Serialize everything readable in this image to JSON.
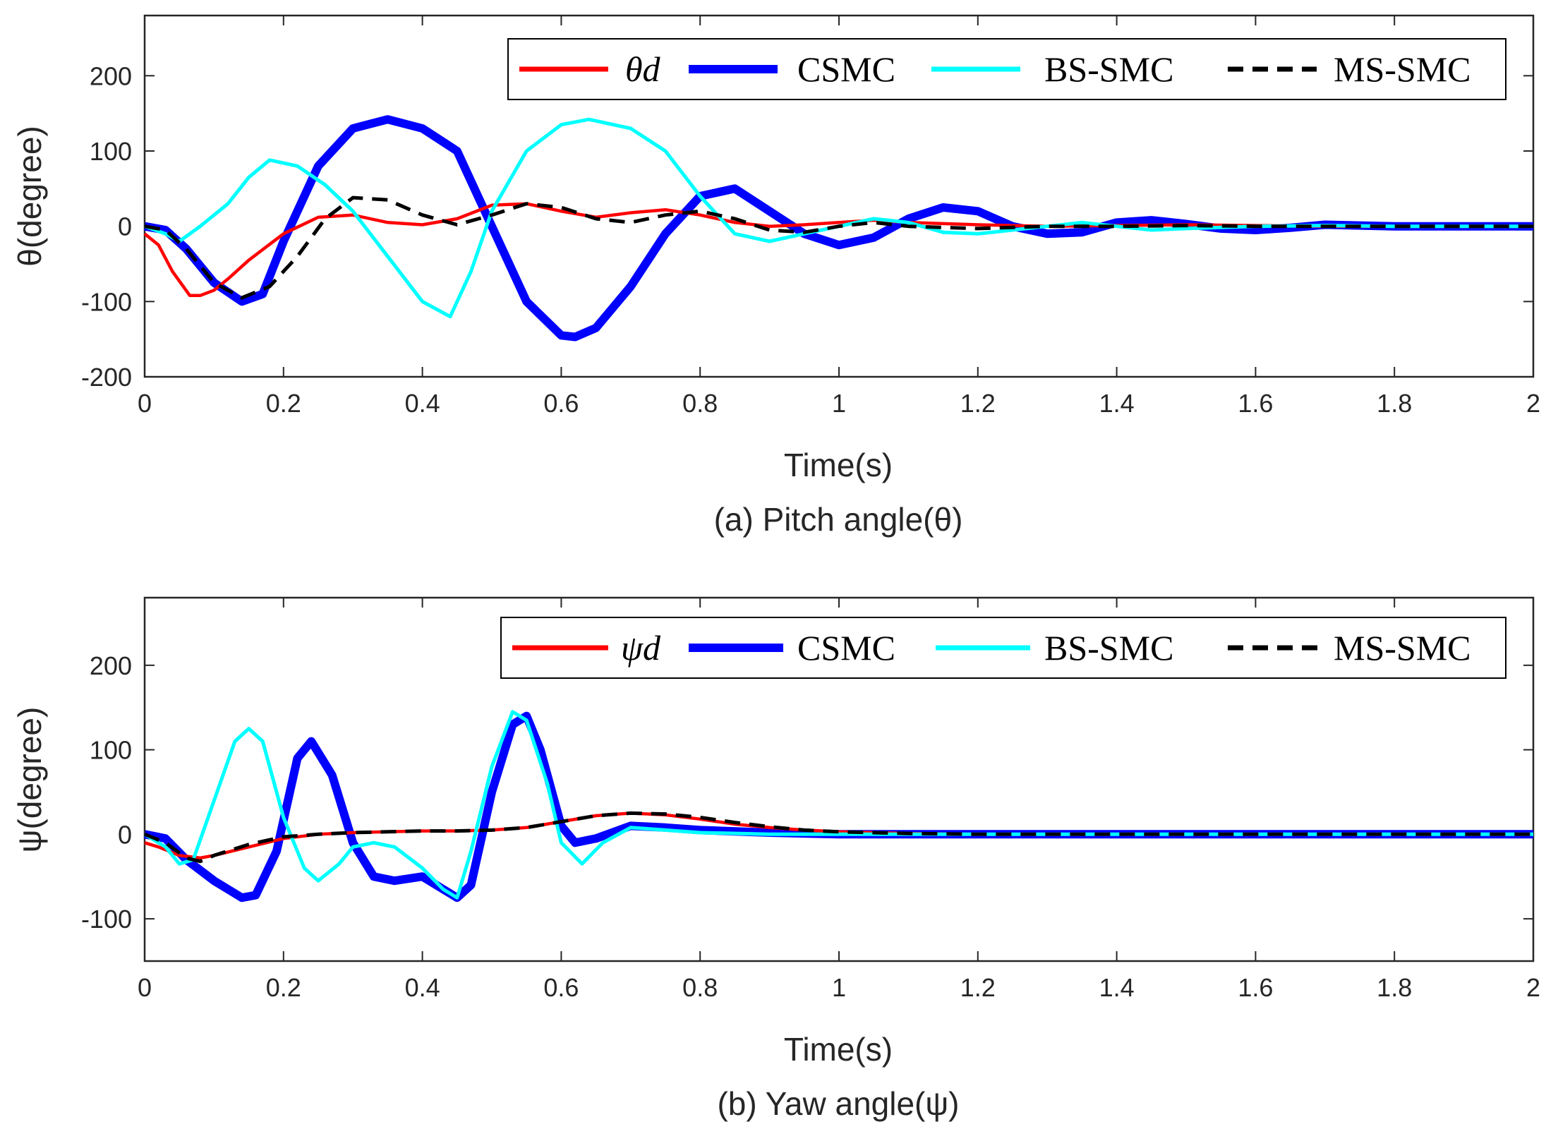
{
  "chart_data": [
    {
      "type": "line",
      "xlabel": "Time(s)",
      "ylabel": "θ(degree)",
      "caption": "(a) Pitch angle(θ)",
      "xlim": [
        0,
        2
      ],
      "ylim": [
        -200,
        280
      ],
      "xticks": [
        0,
        0.2,
        0.4,
        0.6,
        0.8,
        1,
        1.2,
        1.4,
        1.6,
        1.8,
        2
      ],
      "yticks": [
        -200,
        -100,
        0,
        100,
        200
      ],
      "grid": false,
      "legend_position": "top-right",
      "series": [
        {
          "name": "θd",
          "color": "#ff0000",
          "style": "solid",
          "x": [
            0,
            0.02,
            0.04,
            0.065,
            0.08,
            0.1,
            0.12,
            0.15,
            0.2,
            0.25,
            0.3,
            0.35,
            0.4,
            0.45,
            0.5,
            0.55,
            0.6,
            0.65,
            0.7,
            0.75,
            0.8,
            0.85,
            0.9,
            0.95,
            1.0,
            1.05,
            1.1,
            1.2,
            1.3,
            1.4,
            1.5,
            1.6,
            1.7,
            1.8,
            1.9,
            2.0
          ],
          "y": [
            -10,
            -25,
            -60,
            -92,
            -92,
            -85,
            -70,
            -45,
            -10,
            12,
            15,
            5,
            2,
            10,
            28,
            30,
            20,
            12,
            18,
            22,
            15,
            5,
            0,
            2,
            5,
            8,
            5,
            2,
            0,
            1,
            2,
            1,
            0,
            0,
            0,
            0
          ]
        },
        {
          "name": "CSMC",
          "color": "#0000ff",
          "style": "solid",
          "x": [
            0,
            0.03,
            0.06,
            0.1,
            0.14,
            0.17,
            0.2,
            0.25,
            0.3,
            0.35,
            0.4,
            0.45,
            0.5,
            0.55,
            0.6,
            0.62,
            0.65,
            0.7,
            0.75,
            0.8,
            0.85,
            0.9,
            0.95,
            1.0,
            1.05,
            1.1,
            1.15,
            1.2,
            1.25,
            1.3,
            1.35,
            1.4,
            1.45,
            1.5,
            1.55,
            1.6,
            1.65,
            1.7,
            1.75,
            1.8,
            1.9,
            2.0
          ],
          "y": [
            0,
            -5,
            -30,
            -75,
            -100,
            -90,
            -20,
            80,
            130,
            142,
            130,
            100,
            0,
            -100,
            -145,
            -147,
            -135,
            -80,
            -10,
            40,
            50,
            20,
            -10,
            -25,
            -15,
            10,
            25,
            20,
            0,
            -10,
            -8,
            5,
            8,
            3,
            -3,
            -5,
            -2,
            2,
            1,
            0,
            0,
            0
          ]
        },
        {
          "name": "BS-SMC",
          "color": "#00ffff",
          "style": "solid",
          "x": [
            0,
            0.03,
            0.05,
            0.08,
            0.12,
            0.15,
            0.18,
            0.22,
            0.26,
            0.3,
            0.35,
            0.4,
            0.44,
            0.47,
            0.5,
            0.55,
            0.6,
            0.64,
            0.7,
            0.75,
            0.8,
            0.85,
            0.9,
            0.95,
            1.0,
            1.05,
            1.1,
            1.15,
            1.2,
            1.25,
            1.3,
            1.35,
            1.4,
            1.45,
            1.5,
            1.6,
            1.7,
            1.8,
            1.9,
            2.0
          ],
          "y": [
            0,
            -10,
            -20,
            0,
            30,
            65,
            88,
            80,
            55,
            20,
            -40,
            -100,
            -120,
            -60,
            20,
            100,
            135,
            142,
            130,
            100,
            40,
            -10,
            -20,
            -10,
            0,
            10,
            5,
            -8,
            -10,
            -5,
            0,
            5,
            0,
            -5,
            -3,
            0,
            1,
            0,
            0,
            0
          ]
        },
        {
          "name": "MS-SMC",
          "color": "#000000",
          "style": "dashed",
          "x": [
            0,
            0.03,
            0.06,
            0.1,
            0.14,
            0.18,
            0.22,
            0.26,
            0.3,
            0.35,
            0.4,
            0.45,
            0.5,
            0.55,
            0.6,
            0.65,
            0.7,
            0.75,
            0.8,
            0.85,
            0.9,
            0.95,
            1.0,
            1.05,
            1.1,
            1.2,
            1.3,
            1.4,
            1.5,
            1.6,
            1.7,
            1.8,
            1.9,
            2.0
          ],
          "y": [
            0,
            -5,
            -30,
            -75,
            -95,
            -80,
            -40,
            10,
            38,
            35,
            15,
            2,
            15,
            30,
            25,
            10,
            5,
            15,
            20,
            10,
            -5,
            -8,
            0,
            5,
            0,
            -3,
            0,
            0,
            1,
            0,
            0,
            0,
            0,
            0
          ]
        }
      ]
    },
    {
      "type": "line",
      "xlabel": "Time(s)",
      "ylabel": "ψ(degree)",
      "caption": "(b) Yaw angle(ψ)",
      "xlim": [
        0,
        2
      ],
      "ylim": [
        -150,
        280
      ],
      "xticks": [
        0,
        0.2,
        0.4,
        0.6,
        0.8,
        1,
        1.2,
        1.4,
        1.6,
        1.8,
        2
      ],
      "yticks": [
        -100,
        0,
        100,
        200
      ],
      "grid": false,
      "legend_position": "top-right",
      "series": [
        {
          "name": "ψd",
          "color": "#ff0000",
          "style": "solid",
          "x": [
            0,
            0.02,
            0.05,
            0.08,
            0.1,
            0.15,
            0.2,
            0.25,
            0.3,
            0.35,
            0.4,
            0.45,
            0.5,
            0.55,
            0.6,
            0.65,
            0.7,
            0.75,
            0.8,
            0.85,
            0.9,
            0.95,
            1.0,
            1.1,
            1.2,
            1.4,
            1.6,
            1.8,
            2.0
          ],
          "y": [
            -10,
            -15,
            -25,
            -28,
            -25,
            -15,
            -5,
            0,
            2,
            3,
            4,
            4,
            5,
            8,
            15,
            22,
            25,
            23,
            18,
            12,
            8,
            5,
            3,
            1,
            0,
            0,
            0,
            0,
            0
          ]
        },
        {
          "name": "CSMC",
          "color": "#0000ff",
          "style": "solid",
          "x": [
            0,
            0.03,
            0.06,
            0.1,
            0.14,
            0.16,
            0.19,
            0.22,
            0.24,
            0.27,
            0.3,
            0.33,
            0.36,
            0.4,
            0.43,
            0.45,
            0.47,
            0.5,
            0.53,
            0.55,
            0.57,
            0.6,
            0.62,
            0.65,
            0.7,
            0.75,
            0.8,
            0.9,
            1.0,
            1.1,
            1.2,
            1.4,
            1.6,
            1.8,
            2.0
          ],
          "y": [
            0,
            -5,
            -30,
            -55,
            -75,
            -72,
            -20,
            90,
            110,
            70,
            -10,
            -50,
            -55,
            -50,
            -65,
            -75,
            -60,
            50,
            130,
            140,
            100,
            10,
            -10,
            -5,
            10,
            8,
            5,
            2,
            0,
            0,
            0,
            0,
            0,
            0,
            0
          ]
        },
        {
          "name": "BS-SMC",
          "color": "#00ffff",
          "style": "solid",
          "x": [
            0,
            0.03,
            0.05,
            0.07,
            0.1,
            0.13,
            0.15,
            0.17,
            0.2,
            0.23,
            0.25,
            0.28,
            0.3,
            0.33,
            0.36,
            0.4,
            0.43,
            0.45,
            0.47,
            0.5,
            0.53,
            0.55,
            0.58,
            0.6,
            0.63,
            0.66,
            0.7,
            0.75,
            0.8,
            0.9,
            1.0,
            1.2,
            1.4,
            1.6,
            1.8,
            2.0
          ],
          "y": [
            0,
            -15,
            -35,
            -30,
            40,
            110,
            125,
            110,
            20,
            -40,
            -55,
            -35,
            -15,
            -10,
            -15,
            -40,
            -65,
            -75,
            -20,
            80,
            145,
            135,
            60,
            -10,
            -35,
            -10,
            8,
            5,
            2,
            0,
            0,
            0,
            0,
            0,
            0,
            0
          ]
        },
        {
          "name": "MS-SMC",
          "color": "#000000",
          "style": "dashed",
          "x": [
            0,
            0.03,
            0.06,
            0.08,
            0.1,
            0.15,
            0.2,
            0.25,
            0.3,
            0.35,
            0.4,
            0.45,
            0.5,
            0.55,
            0.6,
            0.65,
            0.7,
            0.75,
            0.8,
            0.85,
            0.9,
            0.95,
            1.0,
            1.1,
            1.2,
            1.4,
            1.6,
            1.8,
            2.0
          ],
          "y": [
            0,
            -10,
            -28,
            -32,
            -25,
            -12,
            -3,
            0,
            2,
            3,
            4,
            4,
            5,
            8,
            15,
            22,
            25,
            24,
            20,
            14,
            9,
            5,
            3,
            1,
            0,
            0,
            0,
            0,
            0
          ]
        }
      ]
    }
  ]
}
